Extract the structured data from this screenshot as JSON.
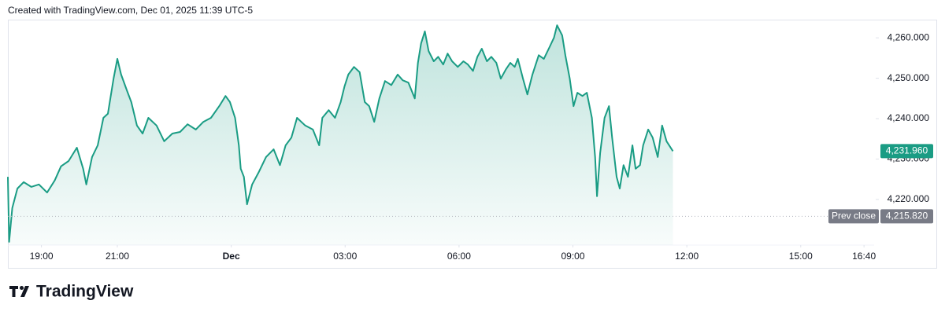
{
  "header": "Created with TradingView.com, Dec 01, 2025 11:39 UTC-5",
  "brand": "TradingView",
  "chart_data": {
    "type": "area",
    "color": "#1a9c84",
    "x": [
      "18:07",
      "18:09",
      "18:14",
      "18:22",
      "18:32",
      "18:44",
      "18:56",
      "19:09",
      "19:21",
      "19:31",
      "19:43",
      "19:56",
      "20:06",
      "20:11",
      "20:20",
      "20:29",
      "20:38",
      "20:45",
      "20:54",
      "21:00",
      "21:06",
      "21:15",
      "21:22",
      "21:31",
      "21:40",
      "21:49",
      "22:02",
      "22:14",
      "22:27",
      "22:39",
      "22:51",
      "23:04",
      "23:16",
      "23:28",
      "23:41",
      "23:51",
      "23:58",
      "00:06",
      "00:12",
      "00:15",
      "00:20",
      "00:25",
      "00:33",
      "00:43",
      "00:55",
      "01:07",
      "01:17",
      "01:26",
      "01:35",
      "01:44",
      "01:57",
      "02:09",
      "02:19",
      "02:24",
      "02:34",
      "02:44",
      "02:53",
      "02:59",
      "03:05",
      "03:14",
      "03:23",
      "03:31",
      "03:38",
      "03:46",
      "03:54",
      "04:03",
      "04:13",
      "04:23",
      "04:31",
      "04:40",
      "04:50",
      "04:55",
      "05:00",
      "05:06",
      "05:12",
      "05:20",
      "05:27",
      "05:35",
      "05:42",
      "05:49",
      "05:58",
      "06:07",
      "06:14",
      "06:22",
      "06:29",
      "06:36",
      "06:44",
      "06:51",
      "06:59",
      "07:06",
      "07:14",
      "07:21",
      "07:28",
      "07:33",
      "07:41",
      "07:48",
      "07:56",
      "08:06",
      "08:14",
      "08:23",
      "08:30",
      "08:35",
      "08:43",
      "08:48",
      "08:55",
      "09:01",
      "09:07",
      "09:15",
      "09:22",
      "09:30",
      "09:35",
      "09:38",
      "09:43",
      "09:50",
      "09:57",
      "10:02",
      "10:09",
      "10:14",
      "10:20",
      "10:27",
      "10:34",
      "10:39",
      "10:46",
      "10:51",
      "10:59",
      "11:06",
      "11:14",
      "11:21",
      "11:28",
      "11:38"
    ],
    "values": [
      4225.6,
      4209.5,
      4217.9,
      4222.7,
      4224.3,
      4223.1,
      4223.7,
      4221.7,
      4224.7,
      4228.2,
      4229.5,
      4232.8,
      4227.6,
      4223.7,
      4230.5,
      4233.4,
      4240.2,
      4241.2,
      4249.9,
      4254.8,
      4250.9,
      4247.0,
      4244.1,
      4238.3,
      4236.3,
      4240.2,
      4238.3,
      4234.4,
      4236.3,
      4236.7,
      4238.6,
      4237.3,
      4239.2,
      4240.2,
      4243.1,
      4245.6,
      4244.1,
      4240.2,
      4233.4,
      4227.6,
      4225.6,
      4218.8,
      4223.7,
      4226.6,
      4230.5,
      4232.4,
      4228.5,
      4233.4,
      4235.3,
      4240.2,
      4238.3,
      4237.3,
      4233.4,
      4240.2,
      4242.1,
      4240.2,
      4244.1,
      4248.0,
      4250.9,
      4252.8,
      4251.5,
      4244.1,
      4243.1,
      4239.2,
      4245.0,
      4249.3,
      4248.3,
      4250.9,
      4249.5,
      4248.9,
      4245.0,
      4253.8,
      4258.6,
      4261.6,
      4256.7,
      4254.2,
      4255.3,
      4253.4,
      4256.1,
      4254.2,
      4252.8,
      4254.2,
      4253.4,
      4251.8,
      4255.3,
      4257.3,
      4254.2,
      4255.3,
      4253.8,
      4249.9,
      4252.2,
      4253.8,
      4252.8,
      4254.8,
      4249.9,
      4246.0,
      4250.9,
      4255.7,
      4254.8,
      4257.7,
      4260.0,
      4263.1,
      4260.6,
      4255.7,
      4249.9,
      4243.1,
      4246.4,
      4245.6,
      4246.4,
      4240.2,
      4230.5,
      4220.8,
      4231.5,
      4240.2,
      4243.1,
      4235.3,
      4225.6,
      4222.7,
      4228.5,
      4225.6,
      4233.4,
      4227.6,
      4228.5,
      4233.4,
      4237.3,
      4235.3,
      4230.5,
      4238.3,
      4234.4,
      4231.96
    ],
    "xlim": [
      "18:07",
      "16:56"
    ],
    "xticks": [
      "19:00",
      "21:00",
      {
        "value": "00:00",
        "label": "Dec"
      },
      "03:00",
      "06:00",
      "09:00",
      "12:00",
      "15:00",
      "16:40"
    ],
    "ylim": [
      4208.7,
      4264.5
    ],
    "yticks": [
      {
        "value": 4220,
        "label": "4,220.000"
      },
      {
        "value": 4230,
        "label": "4,230.000"
      },
      {
        "value": 4240,
        "label": "4,240.000"
      },
      {
        "value": 4250,
        "label": "4,250.000"
      },
      {
        "value": 4260,
        "label": "4,260.000"
      }
    ],
    "current_price": {
      "value": 4231.96,
      "label": "4,231.960"
    },
    "prev_close": {
      "name": "Prev close",
      "value": 4215.82,
      "label": "4,215.820"
    }
  }
}
